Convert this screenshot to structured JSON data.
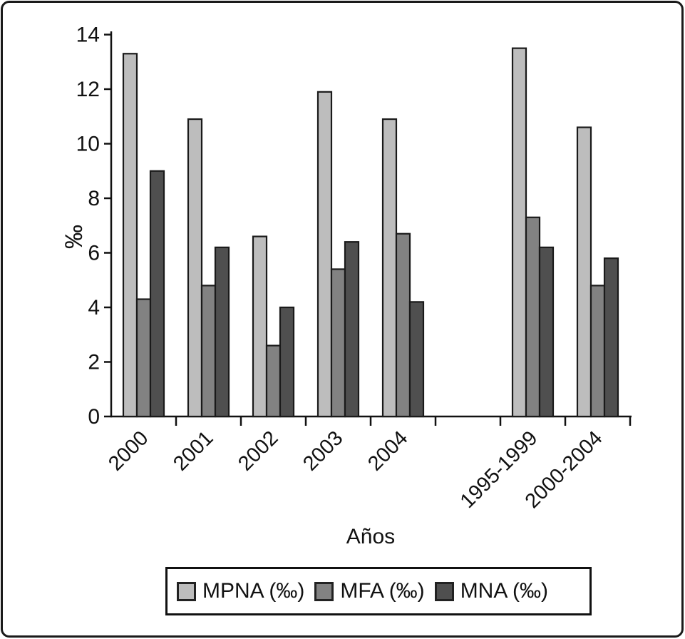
{
  "figure": {
    "background": "#ffffff",
    "frame_border_color": "#1a1a1a",
    "axis_color": "#111111"
  },
  "chart_data": {
    "type": "bar",
    "title": "",
    "xlabel": "Años",
    "ylabel": "‰",
    "categories": [
      "2000",
      "2001",
      "2002",
      "2003",
      "2004",
      "1995-1999",
      "2000-2004"
    ],
    "series": [
      {
        "name": "MPNA (‰)",
        "color": "#bdbdbd",
        "values": [
          13.3,
          10.9,
          6.6,
          11.9,
          10.9,
          13.5,
          10.6
        ]
      },
      {
        "name": "MFA (‰)",
        "color": "#828282",
        "values": [
          4.3,
          4.8,
          2.6,
          5.4,
          6.7,
          7.3,
          4.8
        ]
      },
      {
        "name": "MNA (‰)",
        "color": "#4f4f4f",
        "values": [
          9.0,
          6.2,
          4.0,
          6.4,
          4.2,
          6.2,
          5.8
        ]
      }
    ],
    "ylim": [
      0,
      14
    ],
    "yticks": [
      0,
      2,
      4,
      6,
      8,
      10,
      12,
      14
    ],
    "grid": false,
    "legend_position": "bottom",
    "bar_border_color": "#1a1a1a",
    "layout_hints": {
      "empty_slot_index": 5,
      "x_tick_label_rotation_deg": 45
    }
  }
}
